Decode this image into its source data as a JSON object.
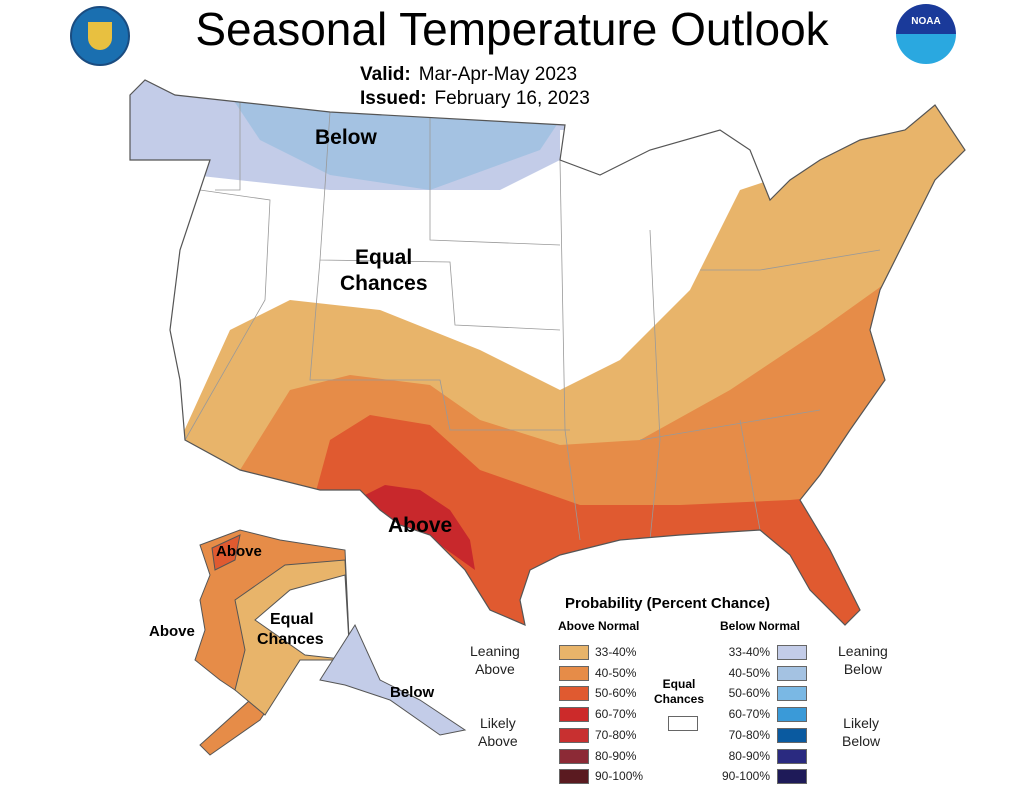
{
  "title": "Seasonal Temperature Outlook",
  "valid": {
    "label": "Valid:",
    "value": "Mar-Apr-May 2023"
  },
  "issued": {
    "label": "Issued:",
    "value": "February 16, 2023"
  },
  "map_labels": {
    "below": "Below",
    "equal_1": "Equal",
    "equal_2": "Chances",
    "above": "Above",
    "ak_above_1": "Above",
    "ak_above_2": "Above",
    "ak_equal_1": "Equal",
    "ak_equal_2": "Chances",
    "ak_below": "Below"
  },
  "legend": {
    "title": "Probability (Percent Chance)",
    "above_header": "Above Normal",
    "below_header": "Below Normal",
    "leaning_above": [
      "Leaning",
      "Above"
    ],
    "likely_above": [
      "Likely",
      "Above"
    ],
    "leaning_below": [
      "Leaning",
      "Below"
    ],
    "likely_below": [
      "Likely",
      "Below"
    ],
    "equal": [
      "Equal",
      "Chances"
    ],
    "equal_color": "#ffffff",
    "above": [
      {
        "range": "33-40%",
        "color": "#e8b46a"
      },
      {
        "range": "40-50%",
        "color": "#e68c48"
      },
      {
        "range": "50-60%",
        "color": "#e05a30"
      },
      {
        "range": "60-70%",
        "color": "#cc2a2a"
      },
      {
        "range": "70-80%",
        "color": "#c83030"
      },
      {
        "range": "80-90%",
        "color": "#8c2a36"
      },
      {
        "range": "90-100%",
        "color": "#5a1a20"
      }
    ],
    "below": [
      {
        "range": "33-40%",
        "color": "#c3cce8"
      },
      {
        "range": "40-50%",
        "color": "#a4c2e2"
      },
      {
        "range": "50-60%",
        "color": "#7ab8e4"
      },
      {
        "range": "60-70%",
        "color": "#3a9ad8"
      },
      {
        "range": "70-80%",
        "color": "#0a5aa0"
      },
      {
        "range": "80-90%",
        "color": "#2a2a80"
      },
      {
        "range": "90-100%",
        "color": "#1e1a58"
      }
    ]
  },
  "logos": {
    "left": "Department of Commerce seal",
    "right": "NOAA"
  }
}
